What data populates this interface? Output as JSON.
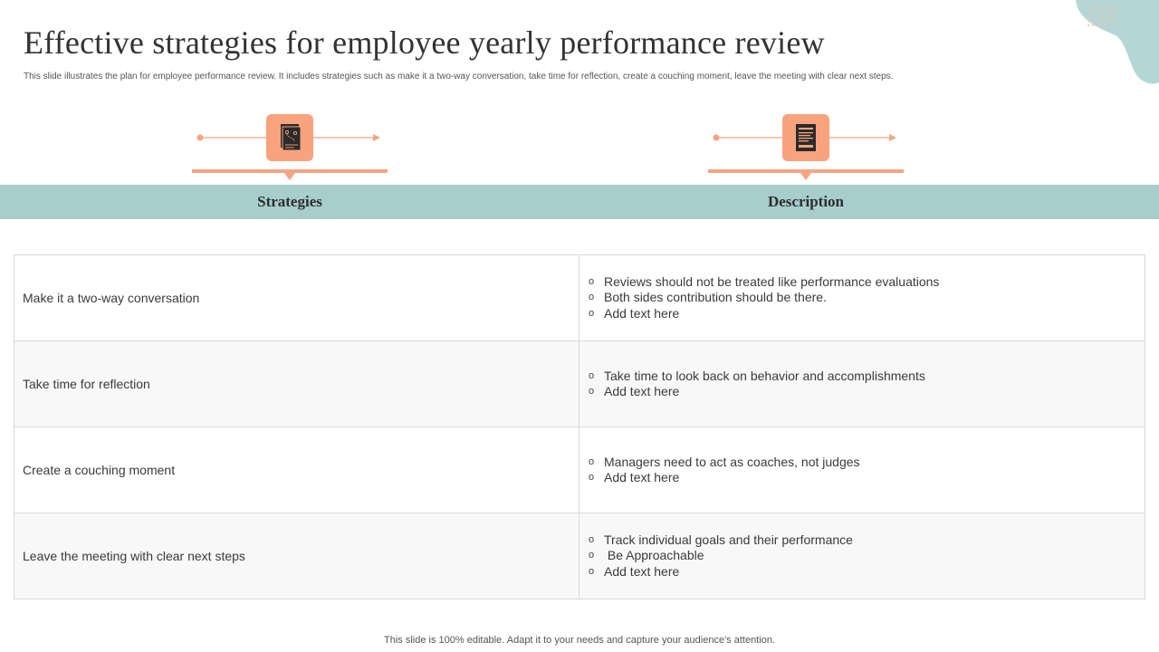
{
  "slide": {
    "title": "Effective strategies for employee yearly performance review",
    "subtitle": "This slide illustrates the plan  for employee performance review. It includes strategies such as make it a two-way conversation, take time for reflection, create a couching moment,  leave the meeting  with clear next steps.",
    "footer": "This slide is 100% editable. Adapt it to your needs and capture your audience's attention."
  },
  "icons": {
    "left": "strategy-document-icon",
    "right": "description-document-icon"
  },
  "headers": {
    "strategies": "Strategies",
    "description": "Description"
  },
  "bullet_symbol": "o",
  "rows": [
    {
      "strategy": "Make it a two-way conversation",
      "points": [
        "Reviews should not be treated like performance evaluations",
        "Both sides contribution should be there.",
        "Add text here"
      ]
    },
    {
      "strategy": "Take time for reflection",
      "points": [
        "Take time to look back on behavior and accomplishments",
        "Add text here"
      ]
    },
    {
      "strategy": "Create a couching moment",
      "points": [
        "Managers need to act as coaches, not judges",
        "Add text here"
      ]
    },
    {
      "strategy": "Leave the meeting with clear next steps",
      "points": [
        "Track individual goals and their performance",
        " Be Approachable",
        "Add text here"
      ]
    }
  ],
  "colors": {
    "accent_orange": "#f7a37e",
    "header_teal": "#a8cdcd",
    "corner_teal": "#b5d6d6"
  }
}
